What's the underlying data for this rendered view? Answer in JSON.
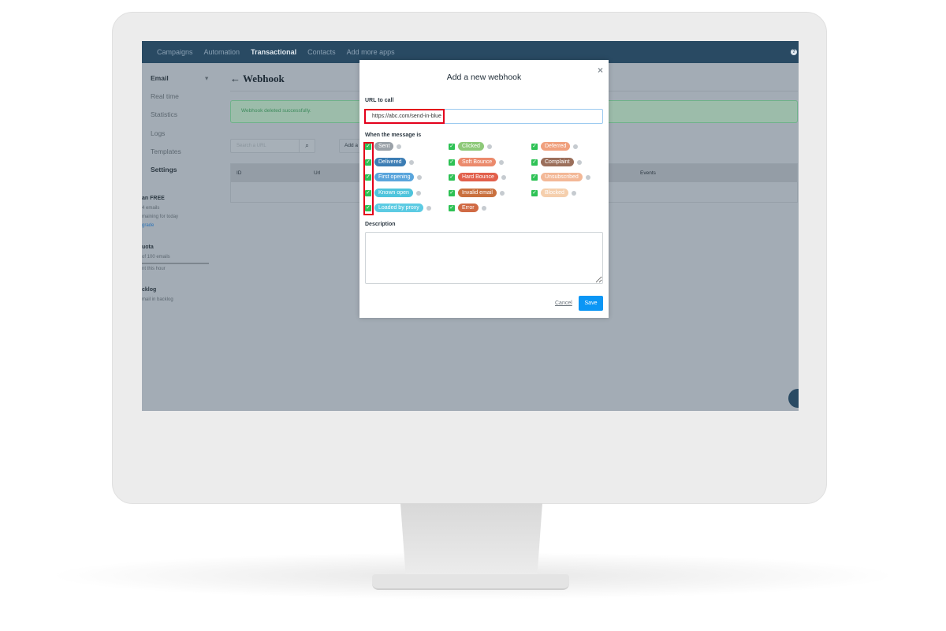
{
  "nav": {
    "items": [
      "Campaigns",
      "Automation",
      "Transactional",
      "Contacts",
      "Add more apps"
    ],
    "active": "Transactional",
    "help_icon": "question-circle-icon"
  },
  "sidebar": {
    "section": "Email",
    "items": [
      "Real time",
      "Statistics",
      "Logs",
      "Templates",
      "Settings"
    ],
    "active": "Settings",
    "plan": {
      "title": "an FREE",
      "line1": "4 emails",
      "line2": "maining for today",
      "link": "grade"
    },
    "quota": {
      "title": "uota",
      "line1": "of 100 emails",
      "line2": "nt this hour"
    },
    "backlog": {
      "title": "cklog",
      "line1": "mail in backlog"
    }
  },
  "page": {
    "title": "← Webhook",
    "alert": "Webhook deleted successfully.",
    "search_placeholder": "Search a URL",
    "add_button": "Add a",
    "columns": [
      "ID",
      "Url",
      "Events"
    ]
  },
  "modal": {
    "title": "Add a new webhook",
    "close": "×",
    "url_label": "URL to call",
    "url_value": "https://abc.com/send-in-blue",
    "events_label": "When the message is",
    "events": [
      {
        "label": "Sent",
        "color": "#9aa1a8",
        "checked": true
      },
      {
        "label": "Delivered",
        "color": "#3c7db4",
        "checked": true
      },
      {
        "label": "First opening",
        "color": "#5aa5dc",
        "checked": true
      },
      {
        "label": "Known open",
        "color": "#4ec4dc",
        "checked": true
      },
      {
        "label": "Loaded by proxy",
        "color": "#5ccbe3",
        "checked": true
      },
      {
        "label": "Clicked",
        "color": "#8ec979",
        "checked": true
      },
      {
        "label": "Soft Bounce",
        "color": "#eb8a6c",
        "checked": true
      },
      {
        "label": "Hard Bounce",
        "color": "#e2604c",
        "checked": true
      },
      {
        "label": "Invalid email",
        "color": "#c9703e",
        "checked": true
      },
      {
        "label": "Error",
        "color": "#d06a44",
        "checked": true
      },
      {
        "label": "Deferred",
        "color": "#f0a07d",
        "checked": true
      },
      {
        "label": "Complaint",
        "color": "#9b6f5b",
        "checked": true
      },
      {
        "label": "Unsubscribed",
        "color": "#f3b897",
        "checked": true
      },
      {
        "label": "Blocked",
        "color": "#f5cfad",
        "checked": true
      }
    ],
    "description_label": "Description",
    "cancel": "Cancel",
    "save": "Save",
    "accent": "#0b96f5",
    "highlight": "#e3001b"
  }
}
